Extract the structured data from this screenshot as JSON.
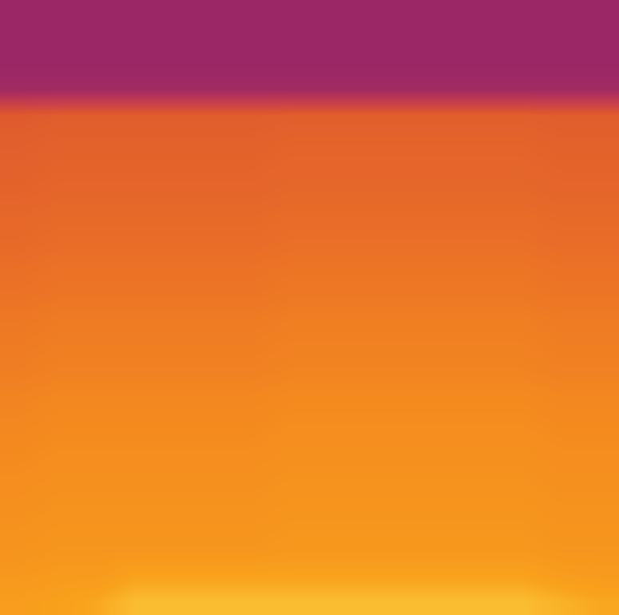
{
  "chart_data": {
    "type": "heatmap",
    "tick_labels": false,
    "zlim": [
      0,
      1
    ],
    "cells": [
      [
        0.25,
        0.25,
        0.25,
        0.25,
        0.25,
        0.25,
        0.25,
        0.25,
        0.25,
        0.25,
        0.25,
        0.25,
        0.25,
        0.25,
        0.25,
        0.25
      ],
      [
        0.25,
        0.25,
        0.25,
        0.25,
        0.25,
        0.25,
        0.25,
        0.25,
        0.25,
        0.25,
        0.25,
        0.25,
        0.25,
        0.25,
        0.25,
        0.25
      ],
      [
        0.25,
        0.25,
        0.25,
        0.25,
        0.25,
        0.25,
        0.25,
        0.25,
        0.25,
        0.25,
        0.25,
        0.25,
        0.25,
        0.25,
        0.25,
        0.25
      ],
      [
        0.28,
        0.28,
        0.28,
        0.28,
        0.28,
        0.28,
        0.28,
        0.28,
        0.28,
        0.28,
        0.28,
        0.28,
        0.28,
        0.28,
        0.28,
        0.28
      ],
      [
        0.62,
        0.63,
        0.63,
        0.63,
        0.63,
        0.63,
        0.63,
        0.64,
        0.64,
        0.64,
        0.64,
        0.64,
        0.64,
        0.64,
        0.63,
        0.63
      ],
      [
        0.64,
        0.65,
        0.65,
        0.65,
        0.65,
        0.65,
        0.65,
        0.66,
        0.66,
        0.66,
        0.66,
        0.66,
        0.66,
        0.66,
        0.65,
        0.65
      ],
      [
        0.65,
        0.66,
        0.66,
        0.66,
        0.66,
        0.66,
        0.66,
        0.67,
        0.67,
        0.67,
        0.67,
        0.67,
        0.67,
        0.67,
        0.66,
        0.66
      ],
      [
        0.66,
        0.67,
        0.67,
        0.67,
        0.67,
        0.67,
        0.67,
        0.68,
        0.68,
        0.68,
        0.68,
        0.68,
        0.68,
        0.68,
        0.67,
        0.67
      ],
      [
        0.68,
        0.69,
        0.69,
        0.69,
        0.69,
        0.69,
        0.69,
        0.7,
        0.7,
        0.7,
        0.7,
        0.7,
        0.7,
        0.7,
        0.69,
        0.69
      ],
      [
        0.69,
        0.7,
        0.7,
        0.7,
        0.7,
        0.7,
        0.7,
        0.71,
        0.71,
        0.71,
        0.71,
        0.71,
        0.71,
        0.71,
        0.7,
        0.7
      ],
      [
        0.71,
        0.72,
        0.72,
        0.72,
        0.72,
        0.72,
        0.72,
        0.73,
        0.73,
        0.73,
        0.73,
        0.73,
        0.73,
        0.73,
        0.72,
        0.72
      ],
      [
        0.72,
        0.73,
        0.73,
        0.73,
        0.73,
        0.73,
        0.73,
        0.74,
        0.74,
        0.74,
        0.74,
        0.74,
        0.74,
        0.74,
        0.73,
        0.73
      ],
      [
        0.74,
        0.75,
        0.75,
        0.75,
        0.75,
        0.75,
        0.75,
        0.76,
        0.76,
        0.76,
        0.76,
        0.76,
        0.76,
        0.76,
        0.75,
        0.75
      ],
      [
        0.75,
        0.76,
        0.76,
        0.76,
        0.76,
        0.76,
        0.76,
        0.77,
        0.77,
        0.77,
        0.77,
        0.77,
        0.77,
        0.77,
        0.76,
        0.76
      ],
      [
        0.76,
        0.77,
        0.77,
        0.77,
        0.77,
        0.77,
        0.77,
        0.78,
        0.78,
        0.78,
        0.78,
        0.78,
        0.78,
        0.78,
        0.77,
        0.77
      ],
      [
        0.78,
        0.79,
        0.79,
        0.79,
        0.79,
        0.79,
        0.79,
        0.8,
        0.8,
        0.8,
        0.8,
        0.8,
        0.8,
        0.8,
        0.79,
        0.79
      ],
      [
        0.79,
        0.8,
        0.8,
        0.8,
        0.8,
        0.8,
        0.8,
        0.81,
        0.81,
        0.81,
        0.81,
        0.81,
        0.81,
        0.81,
        0.8,
        0.8
      ],
      [
        0.8,
        0.81,
        0.81,
        0.81,
        0.81,
        0.81,
        0.81,
        0.82,
        0.82,
        0.82,
        0.82,
        0.82,
        0.82,
        0.82,
        0.81,
        0.81
      ],
      [
        0.81,
        0.82,
        0.82,
        0.82,
        0.82,
        0.82,
        0.82,
        0.83,
        0.83,
        0.83,
        0.83,
        0.83,
        0.83,
        0.83,
        0.82,
        0.82
      ],
      [
        0.82,
        0.83,
        0.83,
        0.83,
        0.83,
        0.83,
        0.83,
        0.84,
        0.84,
        0.84,
        0.84,
        0.84,
        0.84,
        0.84,
        0.83,
        0.83
      ],
      [
        0.83,
        0.84,
        0.84,
        0.84,
        0.84,
        0.84,
        0.84,
        0.85,
        0.85,
        0.85,
        0.85,
        0.85,
        0.85,
        0.85,
        0.84,
        0.84
      ],
      [
        0.84,
        0.85,
        0.85,
        0.85,
        0.85,
        0.85,
        0.85,
        0.86,
        0.86,
        0.86,
        0.86,
        0.86,
        0.86,
        0.86,
        0.85,
        0.85
      ],
      [
        0.86,
        0.87,
        0.87,
        0.9,
        0.9,
        0.9,
        0.9,
        0.9,
        0.9,
        0.9,
        0.9,
        0.9,
        0.9,
        0.9,
        0.88,
        0.87
      ],
      [
        0.88,
        0.89,
        0.91,
        0.95,
        0.95,
        0.95,
        0.95,
        0.95,
        0.95,
        0.95,
        0.95,
        0.95,
        0.95,
        0.95,
        0.93,
        0.91
      ]
    ]
  }
}
